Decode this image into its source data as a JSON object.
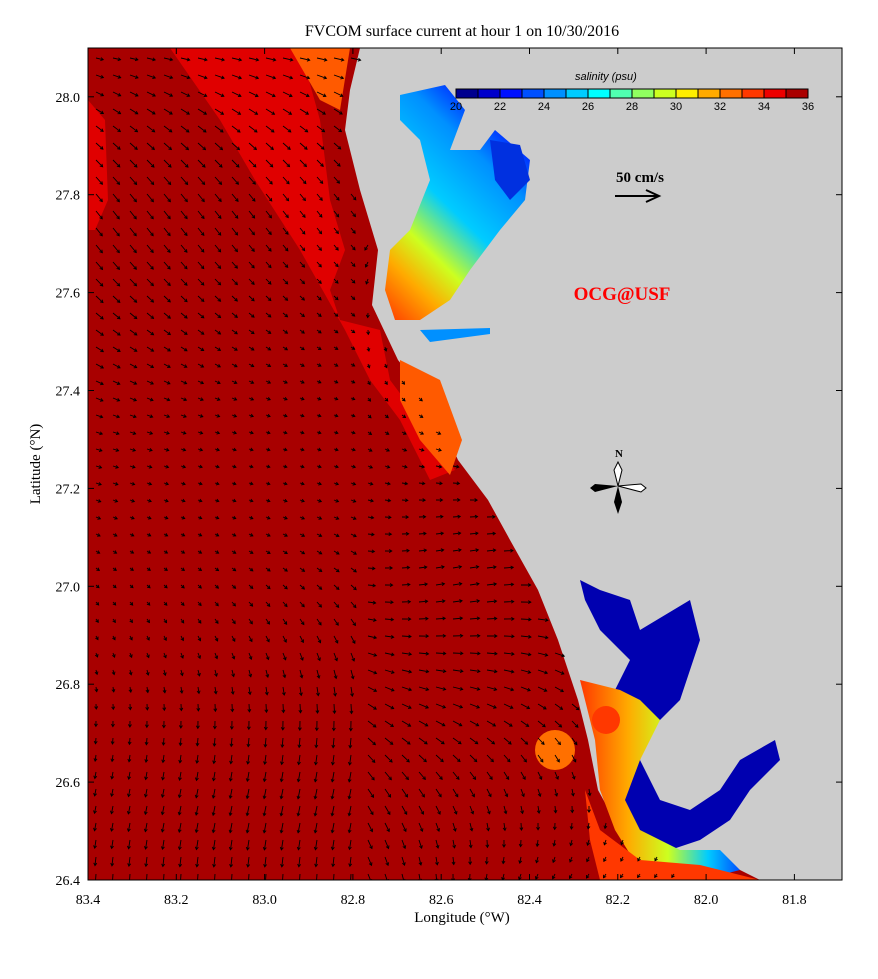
{
  "title": "FVCOM surface current at hour 1 on 10/30/2016",
  "x_axis": {
    "label": "Longitude (°W)",
    "ticks": [
      "83.4",
      "83.2",
      "83.0",
      "82.8",
      "82.6",
      "82.4",
      "82.2",
      "82.0",
      "81.8"
    ],
    "range": [
      83.4,
      81.69
    ]
  },
  "y_axis": {
    "label": "Latitude (°N)",
    "ticks": [
      "28.0",
      "27.8",
      "27.6",
      "27.4",
      "27.2",
      "27.0",
      "26.8",
      "26.6",
      "26.4"
    ],
    "range": [
      26.4,
      28.1
    ]
  },
  "colorbar": {
    "label": "salinity (psu)",
    "ticks": [
      "20",
      "22",
      "24",
      "26",
      "28",
      "30",
      "32",
      "34",
      "36"
    ],
    "range": [
      20,
      36
    ],
    "colors": [
      "#00008f",
      "#0000cc",
      "#0010ff",
      "#0050ff",
      "#0090ff",
      "#00ccff",
      "#00ffff",
      "#50ffb0",
      "#90ff60",
      "#ccff20",
      "#ffee00",
      "#ffaa00",
      "#ff7000",
      "#ff3800",
      "#ee0000",
      "#aa0000"
    ]
  },
  "scale_arrow": {
    "label": "50 cm/s",
    "value_cm_s": 50
  },
  "watermark": "OCG@USF",
  "compass": {
    "label": "N"
  },
  "colors": {
    "land": "#cccccc",
    "ocean": "#a80000",
    "nearshore": "#e00000",
    "watermark": "#ff0000"
  }
}
